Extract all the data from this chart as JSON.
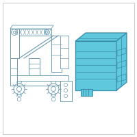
{
  "bg_color": "#ffffff",
  "border_color": "#cccccc",
  "line_color": "#6a9aaf",
  "highlight_fill": "#60c8dc",
  "highlight_edge": "#3a8aaa",
  "module_line": "#3a8aaa"
}
